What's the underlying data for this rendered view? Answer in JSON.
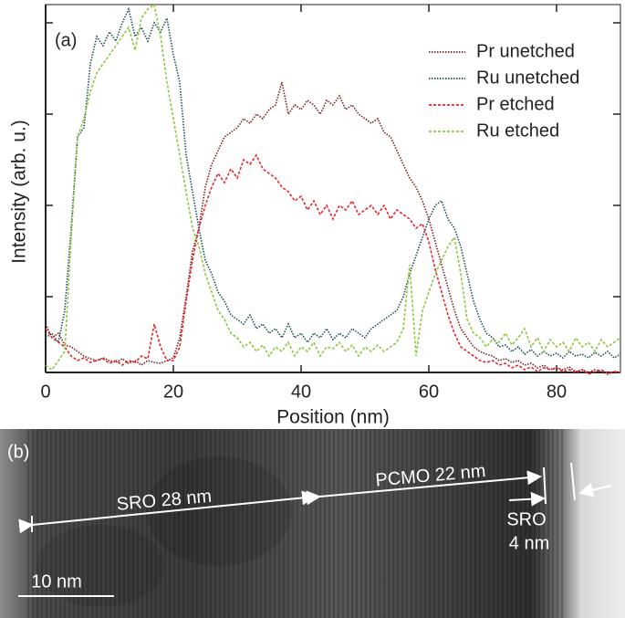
{
  "chart_data": {
    "type": "line",
    "annotation": "(a)",
    "x_label": "Position (nm)",
    "y_label": "Intensity (arb. u.)",
    "x": [
      0,
      1,
      2,
      3,
      4,
      5,
      6,
      7,
      8,
      9,
      10,
      11,
      12,
      13,
      14,
      15,
      16,
      17,
      18,
      19,
      20,
      21,
      22,
      23,
      24,
      25,
      26,
      27,
      28,
      29,
      30,
      31,
      32,
      33,
      34,
      35,
      36,
      37,
      38,
      39,
      40,
      41,
      42,
      43,
      44,
      45,
      46,
      47,
      48,
      49,
      50,
      51,
      52,
      53,
      54,
      55,
      56,
      57,
      58,
      59,
      60,
      61,
      62,
      63,
      64,
      65,
      66,
      67,
      68,
      69,
      70,
      71,
      72,
      73,
      74,
      75,
      76,
      77,
      78,
      79,
      80,
      81,
      82,
      83,
      84,
      85,
      86,
      87,
      88,
      89,
      90
    ],
    "xlim": [
      0,
      90
    ],
    "xticks": [
      0,
      20,
      40,
      60,
      80
    ],
    "ylim": [
      0.17,
      4.2
    ],
    "yticks": [
      1,
      2,
      3,
      4
    ],
    "legend": "top-right",
    "series": [
      {
        "name": "Pr unetched",
        "color": "#7a1f1f",
        "dash": "dotted",
        "values": [
          0.7,
          0.55,
          0.6,
          0.47,
          0.45,
          0.4,
          0.35,
          0.32,
          0.3,
          0.33,
          0.3,
          0.28,
          0.32,
          0.27,
          0.3,
          0.25,
          0.3,
          0.28,
          0.27,
          0.3,
          0.33,
          0.55,
          1.0,
          1.5,
          1.75,
          2.2,
          2.45,
          2.6,
          2.75,
          2.8,
          2.85,
          2.95,
          2.9,
          3.0,
          2.95,
          3.05,
          3.1,
          3.35,
          3.0,
          3.1,
          3.05,
          3.15,
          3.1,
          3.0,
          3.15,
          3.1,
          3.2,
          3.05,
          3.1,
          3.0,
          2.95,
          2.9,
          2.95,
          2.8,
          2.75,
          2.6,
          2.45,
          2.3,
          2.2,
          2.05,
          1.85,
          1.6,
          1.35,
          1.1,
          0.85,
          0.65,
          0.55,
          0.45,
          0.4,
          0.37,
          0.35,
          0.3,
          0.32,
          0.28,
          0.3,
          0.25,
          0.27,
          0.22,
          0.25,
          0.2,
          0.22,
          0.2,
          0.23,
          0.18,
          0.2,
          0.17,
          0.2,
          0.18,
          0.15,
          0.18,
          0.17
        ]
      },
      {
        "name": "Ru unetched",
        "color": "#1f4f5a",
        "dash": "dotted",
        "values": [
          0.55,
          0.6,
          0.5,
          0.85,
          1.75,
          2.75,
          2.85,
          3.55,
          3.85,
          3.75,
          3.9,
          3.8,
          4.0,
          4.15,
          3.85,
          3.95,
          3.8,
          4.0,
          3.9,
          4.05,
          3.65,
          3.35,
          2.55,
          2.15,
          1.75,
          1.4,
          1.25,
          1.05,
          0.95,
          0.8,
          0.75,
          0.7,
          0.8,
          0.65,
          0.7,
          0.6,
          0.65,
          0.55,
          0.7,
          0.55,
          0.6,
          0.5,
          0.6,
          0.55,
          0.65,
          0.53,
          0.6,
          0.55,
          0.65,
          0.6,
          0.55,
          0.65,
          0.7,
          0.75,
          0.8,
          0.85,
          1.0,
          1.25,
          1.45,
          1.65,
          1.85,
          2.0,
          2.05,
          1.85,
          1.75,
          1.55,
          1.25,
          0.95,
          0.75,
          0.6,
          0.55,
          0.45,
          0.47,
          0.4,
          0.45,
          0.37,
          0.42,
          0.35,
          0.4,
          0.35,
          0.38,
          0.33,
          0.4,
          0.35,
          0.37,
          0.33,
          0.39,
          0.35,
          0.4,
          0.33,
          0.37
        ]
      },
      {
        "name": "Pr etched",
        "color": "#e8232a",
        "dash": "dashed",
        "values": [
          0.65,
          0.55,
          0.5,
          0.45,
          0.35,
          0.3,
          0.33,
          0.28,
          0.3,
          0.32,
          0.27,
          0.3,
          0.25,
          0.3,
          0.28,
          0.35,
          0.32,
          0.7,
          0.45,
          0.3,
          0.3,
          0.45,
          0.95,
          1.4,
          1.75,
          2.0,
          2.2,
          2.35,
          2.25,
          2.4,
          2.3,
          2.5,
          2.45,
          2.55,
          2.4,
          2.35,
          2.3,
          2.2,
          2.15,
          2.05,
          2.1,
          1.95,
          2.05,
          1.9,
          2.0,
          1.85,
          2.0,
          1.95,
          2.05,
          1.9,
          1.95,
          2.0,
          1.9,
          2.0,
          1.85,
          1.95,
          1.9,
          1.85,
          1.75,
          1.8,
          1.6,
          1.3,
          1.05,
          0.8,
          0.6,
          0.45,
          0.4,
          0.35,
          0.3,
          0.28,
          0.3,
          0.25,
          0.27,
          0.22,
          0.25,
          0.2,
          0.23,
          0.18,
          0.22,
          0.2,
          0.22,
          0.18,
          0.2,
          0.17,
          0.2,
          0.15,
          0.18,
          0.2,
          0.16,
          0.18,
          0.17
        ]
      },
      {
        "name": "Ru etched",
        "color": "#8dc63f",
        "dash": "dashed",
        "values": [
          0.25,
          0.2,
          0.3,
          0.4,
          1.65,
          2.75,
          2.95,
          3.25,
          3.45,
          3.55,
          3.65,
          3.75,
          3.85,
          3.95,
          3.7,
          4.05,
          4.15,
          4.2,
          3.85,
          3.35,
          2.95,
          2.55,
          2.15,
          1.75,
          1.55,
          1.25,
          1.05,
          0.85,
          0.75,
          0.6,
          0.55,
          0.45,
          0.5,
          0.4,
          0.47,
          0.35,
          0.45,
          0.4,
          0.5,
          0.35,
          0.45,
          0.4,
          0.5,
          0.35,
          0.45,
          0.43,
          0.5,
          0.4,
          0.47,
          0.35,
          0.45,
          0.4,
          0.47,
          0.4,
          0.45,
          0.5,
          0.65,
          1.35,
          0.35,
          0.85,
          1.05,
          1.25,
          1.4,
          1.55,
          1.65,
          1.25,
          0.75,
          0.6,
          0.55,
          0.45,
          0.53,
          0.5,
          0.6,
          0.47,
          0.55,
          0.65,
          0.45,
          0.55,
          0.4,
          0.53,
          0.45,
          0.5,
          0.4,
          0.55,
          0.45,
          0.5,
          0.4,
          0.53,
          0.45,
          0.5,
          0.55
        ]
      }
    ]
  },
  "panel_b": {
    "label": "(b)",
    "sro_thick": "SRO 28 nm",
    "pcmo": "PCMO 22 nm",
    "sro_thin_1": "SRO",
    "sro_thin_2": "4 nm",
    "scale_bar": "10 nm"
  }
}
